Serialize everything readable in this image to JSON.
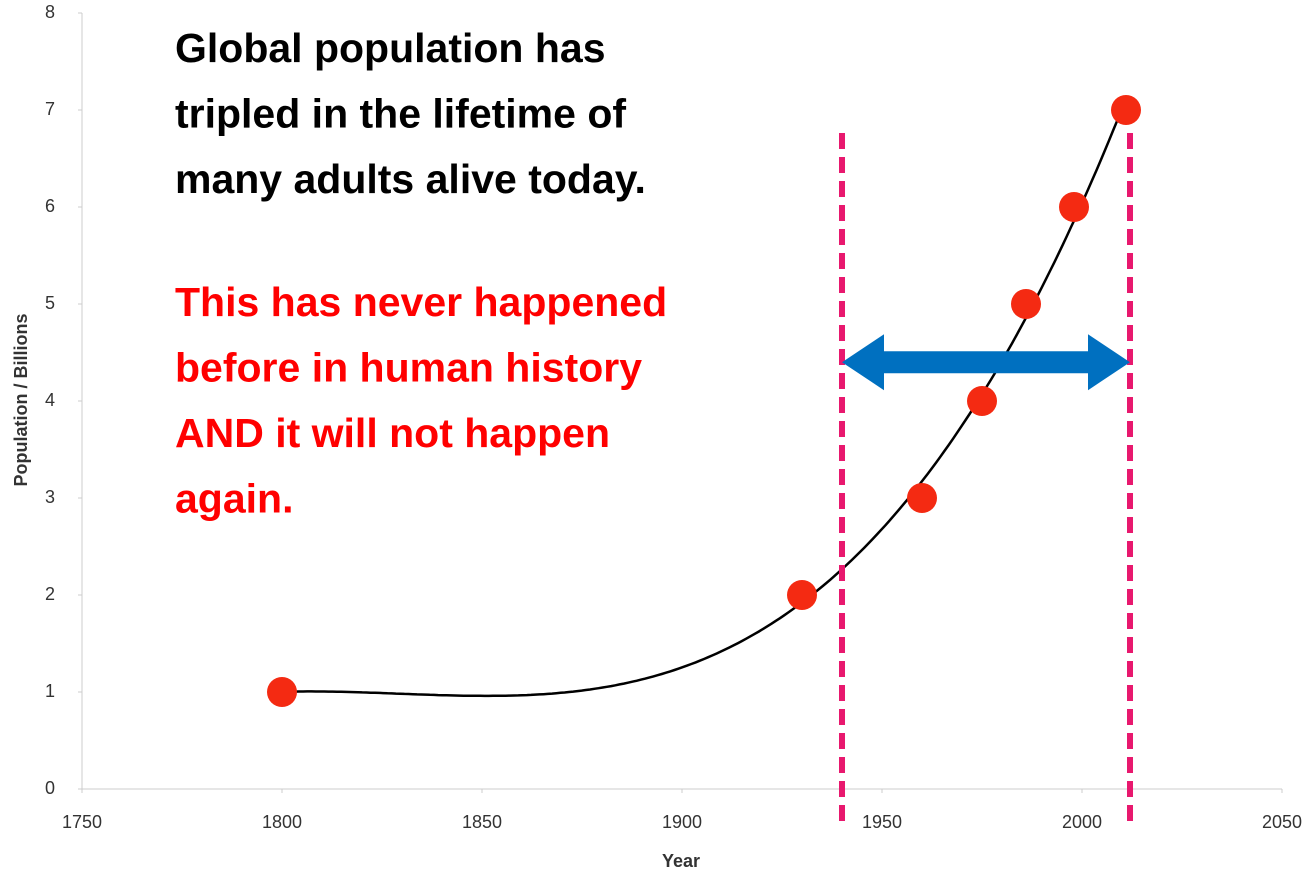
{
  "chart_data": {
    "type": "scatter",
    "x_label": "Year",
    "y_label": "Population / Billions",
    "x": [
      1800,
      1930,
      1960,
      1975,
      1986,
      1998,
      2011
    ],
    "values": [
      1,
      2,
      3,
      4,
      5,
      6,
      7
    ],
    "color": "#f42a12",
    "xlim": [
      1750,
      2050
    ],
    "xticks": [
      1750,
      1800,
      1850,
      1900,
      1950,
      2000,
      2050
    ],
    "ylim": [
      0,
      8
    ],
    "yticks": [
      0,
      1,
      2,
      3,
      4,
      5,
      6,
      7,
      8
    ],
    "grid": false,
    "trendline": "polynomial",
    "trendline_order": 3,
    "trendline_color": "#000000",
    "vlines": [
      1940,
      2012
    ],
    "vline_color": "#e8186e",
    "arrow": {
      "x": [
        1940,
        2012
      ],
      "y": 4.4,
      "color": "#0070c0"
    },
    "annotations": [
      {
        "lines": [
          "Global population has",
          "tripled in the lifetime of",
          "many adults alive today."
        ],
        "color": "#000000"
      },
      {
        "lines": [
          "This has never happened",
          "before in human history",
          "AND it will not happen",
          "again."
        ],
        "color": "#ff0000"
      }
    ]
  }
}
